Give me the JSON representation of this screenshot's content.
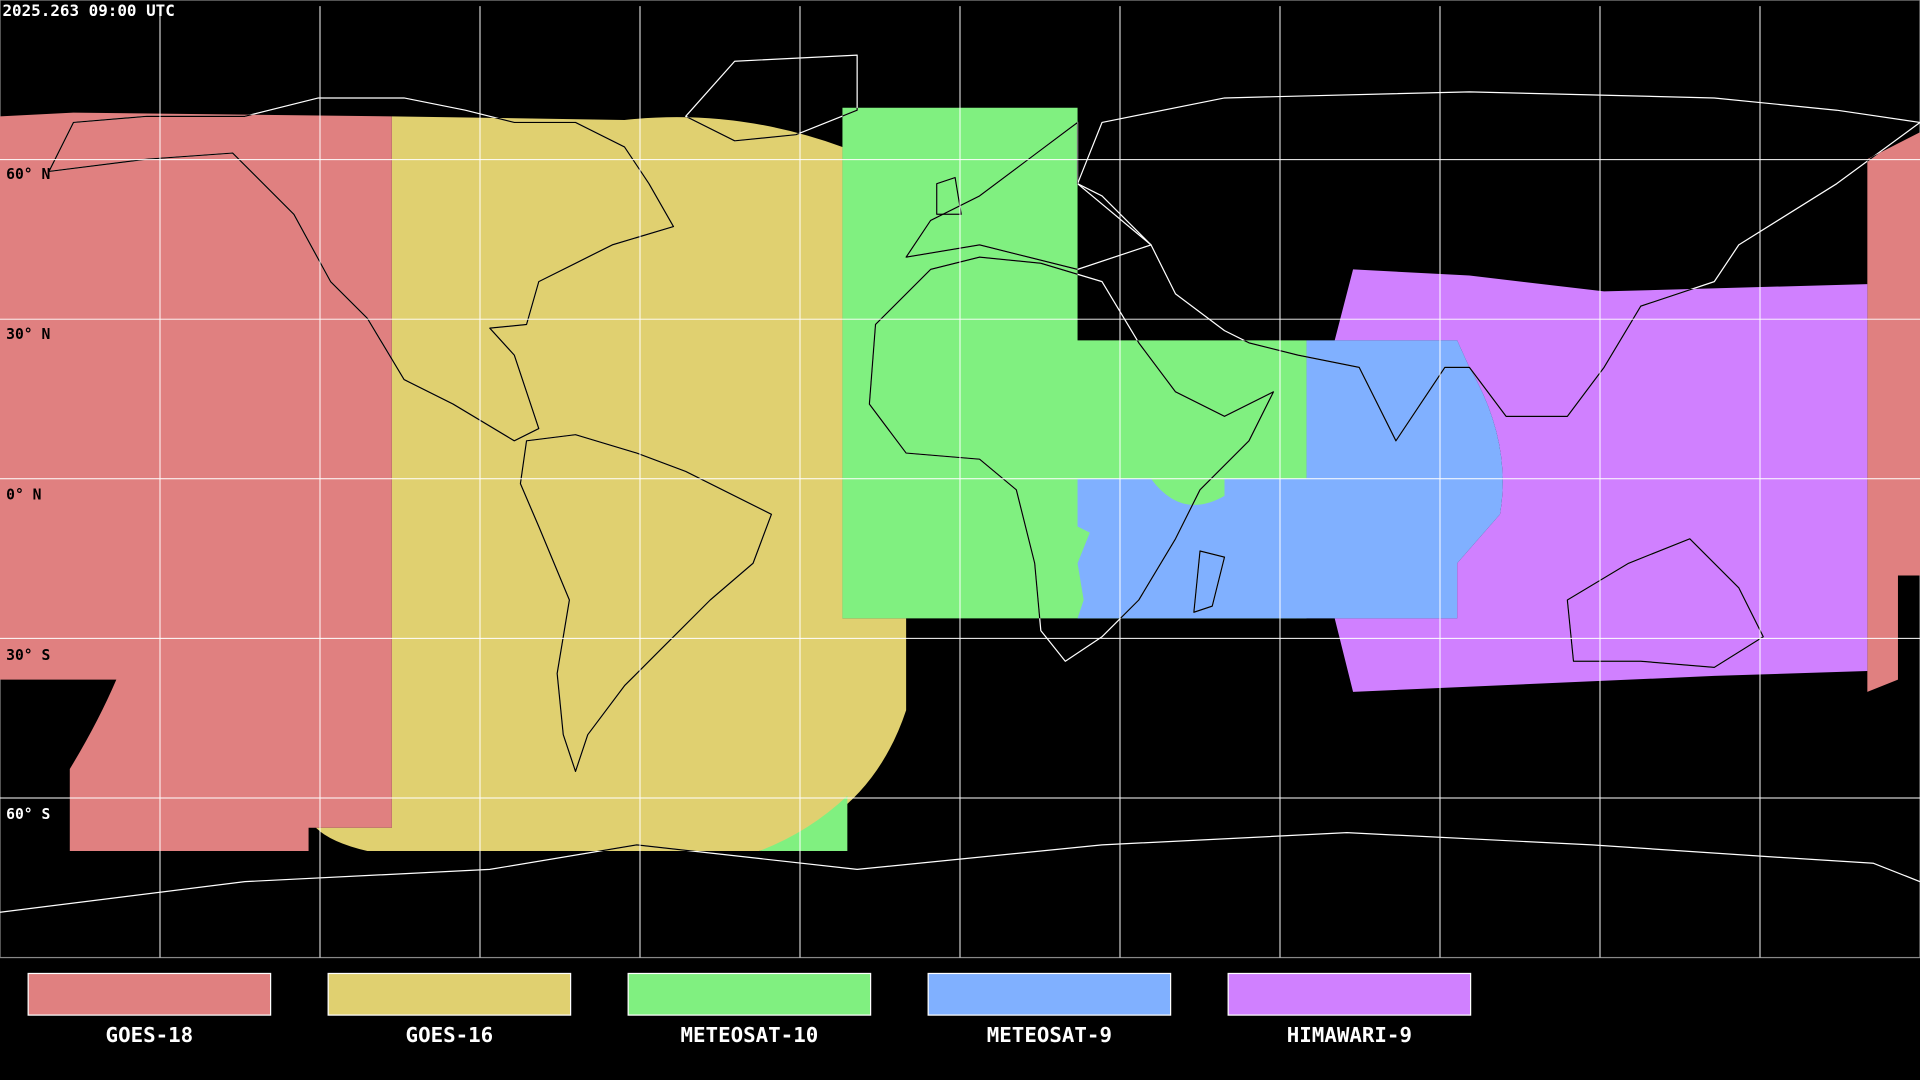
{
  "timestamp": "2025.263 09:00 UTC",
  "lat_labels": [
    "60° N",
    "30° N",
    "0° N",
    "30° S",
    "60° S"
  ],
  "satellites": [
    {
      "name": "GOES-18",
      "color": "#e08080"
    },
    {
      "name": "GOES-16",
      "color": "#e0d070"
    },
    {
      "name": "METEOSAT-10",
      "color": "#80f080"
    },
    {
      "name": "METEOSAT-9",
      "color": "#80b0ff"
    },
    {
      "name": "HIMAWARI-9",
      "color": "#d080ff"
    }
  ],
  "colors": {
    "background": "#000000",
    "coastline_land": "#ffffff",
    "coastline_covered": "#000000",
    "grid": "#ffffff"
  }
}
